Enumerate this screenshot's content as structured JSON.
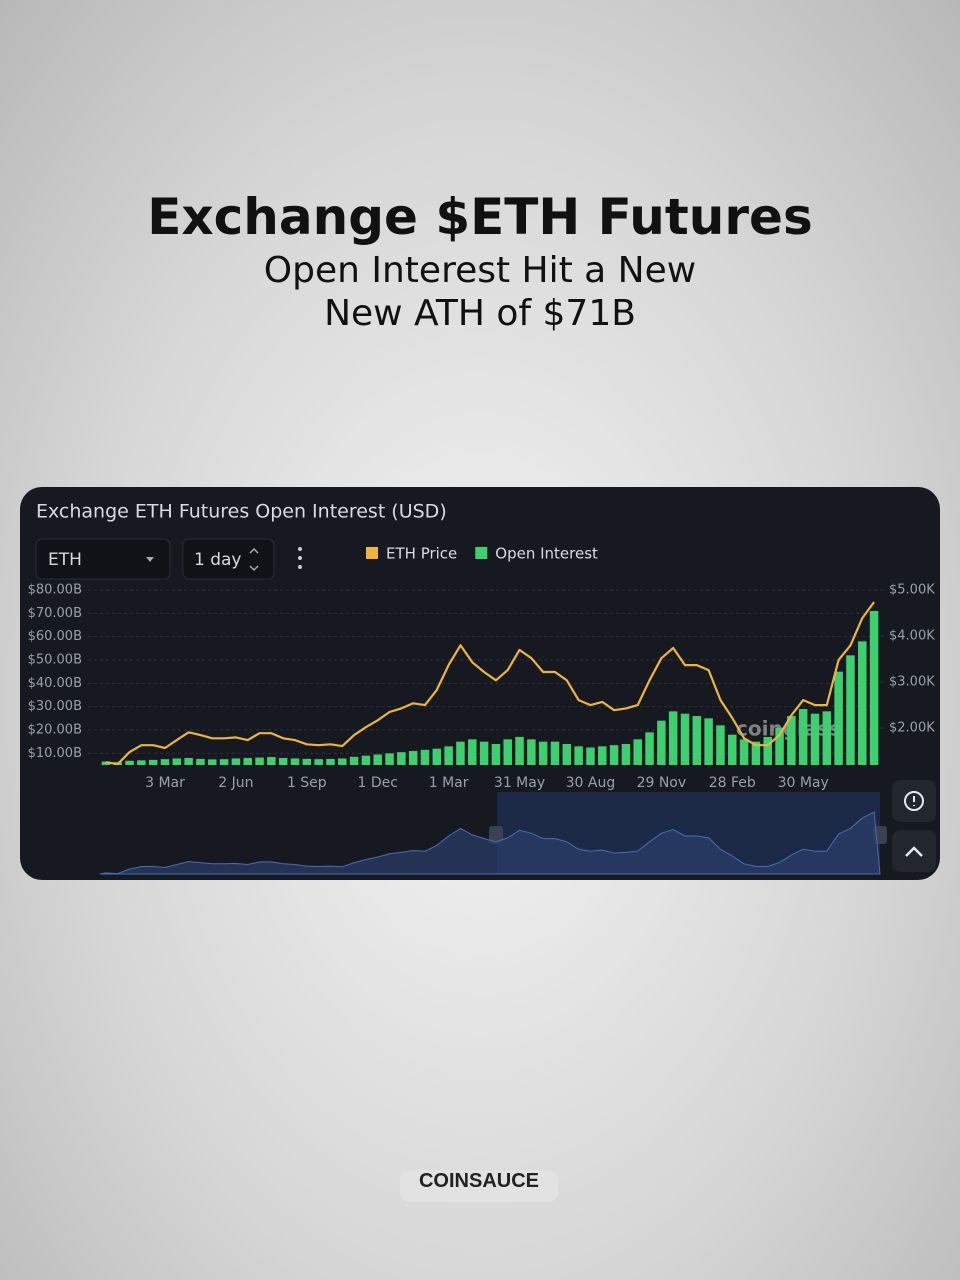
{
  "header": {
    "title": "Exchange $ETH Futures",
    "subtitle_lines": [
      "Open Interest Hit a New",
      "New ATH of $71B"
    ]
  },
  "controls": {
    "asset": "ETH",
    "interval": "1 day"
  },
  "watermark": "coinglass",
  "footer": {
    "brand": "COINSAUCE"
  },
  "chart_data": {
    "type": "combo",
    "title": "Exchange ETH Futures Open Interest (USD)",
    "categories": [
      null,
      null,
      null,
      null,
      null,
      "3 Mar",
      null,
      null,
      null,
      null,
      null,
      "2 Jun",
      null,
      null,
      null,
      null,
      null,
      "1 Sep",
      null,
      null,
      null,
      null,
      null,
      "1 Dec",
      null,
      null,
      null,
      null,
      null,
      "1 Mar",
      null,
      null,
      null,
      null,
      null,
      "31 May",
      null,
      null,
      null,
      null,
      null,
      "30 Aug",
      null,
      null,
      null,
      null,
      null,
      "29 Nov",
      null,
      null,
      null,
      null,
      null,
      "28 Feb",
      null,
      null,
      null,
      null,
      null,
      "30 May",
      null,
      null,
      null,
      null,
      null,
      null
    ],
    "series": [
      {
        "name": "ETH Price",
        "color": "#f0b43c",
        "axis": "y2",
        "values": [
          1.26,
          1.22,
          1.48,
          1.63,
          1.63,
          1.57,
          1.74,
          1.91,
          1.85,
          1.78,
          1.78,
          1.8,
          1.74,
          1.89,
          1.89,
          1.78,
          1.74,
          1.65,
          1.63,
          1.65,
          1.61,
          1.85,
          2.02,
          2.17,
          2.35,
          2.43,
          2.54,
          2.5,
          2.83,
          3.37,
          3.8,
          3.43,
          3.22,
          3.04,
          3.26,
          3.7,
          3.52,
          3.22,
          3.22,
          3.04,
          2.61,
          2.5,
          2.57,
          2.39,
          2.43,
          2.5,
          3.04,
          3.52,
          3.74,
          3.37,
          3.37,
          3.26,
          2.61,
          2.22,
          1.78,
          1.63,
          1.63,
          1.85,
          2.28,
          2.61,
          2.5,
          2.5,
          3.48,
          3.8,
          4.39,
          4.74
        ]
      },
      {
        "name": "Open Interest",
        "color": "#3ecf6e",
        "values": [
          6.5,
          6.2,
          6.8,
          7,
          7.2,
          7.5,
          7.8,
          8,
          7.6,
          7.4,
          7.5,
          7.8,
          8,
          8.2,
          8.4,
          8,
          7.8,
          7.6,
          7.5,
          7.6,
          7.8,
          8.5,
          9,
          9.5,
          10,
          10.5,
          11,
          11.5,
          12,
          13,
          15,
          16,
          15,
          14,
          16,
          17,
          16,
          15,
          15,
          14,
          13,
          12.5,
          13,
          13.5,
          14,
          16,
          19,
          24,
          28,
          27,
          26,
          25,
          22,
          18,
          16,
          15,
          17,
          21,
          26,
          29,
          27,
          28,
          45,
          52,
          58,
          71
        ]
      }
    ],
    "ylim": [
      5,
      80
    ],
    "yticks": [
      {
        "value": 10,
        "label": "$10.00B"
      },
      {
        "value": 20,
        "label": "$20.00B"
      },
      {
        "value": 30,
        "label": "$30.00B"
      },
      {
        "value": 40,
        "label": "$40.00B"
      },
      {
        "value": 50,
        "label": "$50.00B"
      },
      {
        "value": 60,
        "label": "$60.00B"
      },
      {
        "value": 70,
        "label": "$70.00B"
      },
      {
        "value": 80,
        "label": "$80.00B"
      }
    ],
    "y2lim": [
      1.2,
      5
    ],
    "y2ticks": [
      {
        "value": 2,
        "label": "$2.00K"
      },
      {
        "value": 3,
        "label": "$3.00K"
      },
      {
        "value": 4,
        "label": "$4.00K"
      },
      {
        "value": 5,
        "label": "$5.00K"
      }
    ],
    "grid": true
  }
}
